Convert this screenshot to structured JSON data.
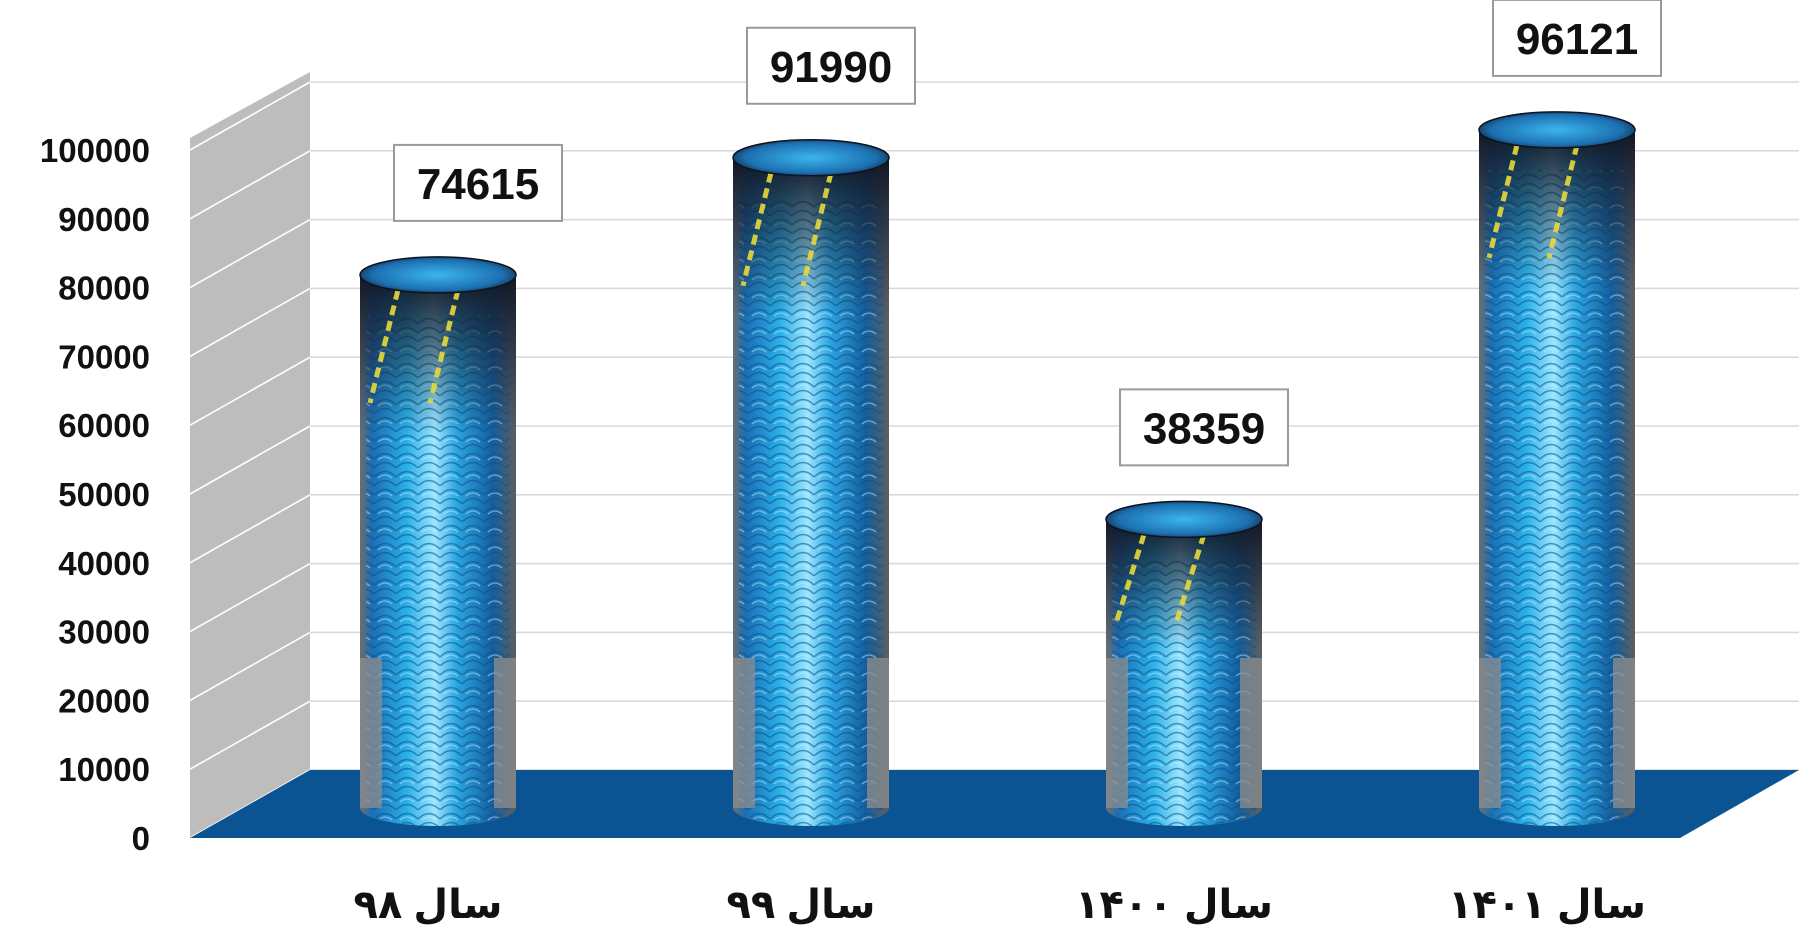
{
  "chart_data": {
    "type": "bar",
    "style": "3d-cylinder",
    "categories": [
      "سال ۹۸",
      "سال ۹۹",
      "سال ۱۴۰۰",
      "سال ۱۴۰۱"
    ],
    "values": [
      74615,
      91990,
      38359,
      96121
    ],
    "data_labels": [
      "74615",
      "91990",
      "38359",
      "96121"
    ],
    "y_ticks": [
      "0",
      "10000",
      "20000",
      "30000",
      "40000",
      "50000",
      "60000",
      "70000",
      "80000",
      "90000",
      "100000"
    ],
    "ylim": [
      0,
      100000
    ],
    "grid": true,
    "legend": "none",
    "title": "",
    "xlabel": "",
    "ylabel": ""
  },
  "colors": {
    "floor": "#0a5494",
    "side_wall": "#bdbdbd",
    "back_wall": "#ffffff",
    "gridline": "#d9d9d9",
    "cylinder_body": "#29a9e0",
    "cylinder_highlight": "#8fe0ff",
    "cylinder_dark": "#1b2436",
    "cylinder_gray": "#8e8e8e"
  }
}
